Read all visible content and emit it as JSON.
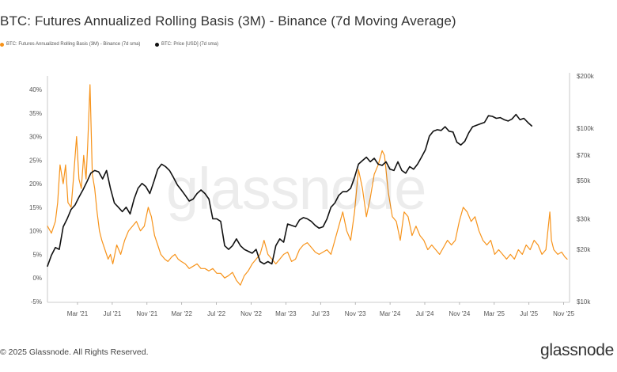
{
  "chart_data": {
    "type": "line",
    "title": "BTC: Futures Annualized Rolling Basis (3M) - Binance (7d Moving Average)",
    "watermark": "glassnode",
    "x_ticks": [
      "Mar '21",
      "Jul '21",
      "Nov '21",
      "Mar '22",
      "Jul '22",
      "Nov '22",
      "Mar '23",
      "Jul '23",
      "Nov '23",
      "Mar '24",
      "Jul '24",
      "Nov '24",
      "Mar '25",
      "Jul '25",
      "Nov '25"
    ],
    "x_range": [
      "Jan '21",
      "Nov '25"
    ],
    "left_axis": {
      "ticks": [
        "-5%",
        "0%",
        "5%",
        "10%",
        "15%",
        "20%",
        "25%",
        "30%",
        "35%",
        "40%"
      ],
      "min": -5,
      "max": 45
    },
    "right_axis": {
      "ticks": [
        "$10k",
        "$20k",
        "$30k",
        "$50k",
        "$70k",
        "$100k",
        "$200k"
      ],
      "min": 10000,
      "max": 200000,
      "scale": "log"
    },
    "series": [
      {
        "name": "BTC: Futures Annualized Rolling Basis (3M) - Binance (7d sma)",
        "color": "#f7931a",
        "axis": "left",
        "points": [
          [
            0,
            11
          ],
          [
            0.5,
            9.5
          ],
          [
            1.0,
            12
          ],
          [
            1.3,
            16
          ],
          [
            1.6,
            24
          ],
          [
            2.0,
            20
          ],
          [
            2.3,
            24
          ],
          [
            2.6,
            16
          ],
          [
            3.0,
            15
          ],
          [
            3.3,
            21
          ],
          [
            3.7,
            30
          ],
          [
            4.0,
            21
          ],
          [
            4.3,
            19
          ],
          [
            4.6,
            26
          ],
          [
            4.9,
            21
          ],
          [
            5.1,
            28
          ],
          [
            5.4,
            41
          ],
          [
            5.7,
            22
          ],
          [
            6.0,
            19
          ],
          [
            6.3,
            14
          ],
          [
            6.6,
            10
          ],
          [
            6.9,
            8
          ],
          [
            7.3,
            6
          ],
          [
            7.7,
            4
          ],
          [
            8.0,
            5
          ],
          [
            8.3,
            3
          ],
          [
            8.8,
            7
          ],
          [
            9.3,
            5
          ],
          [
            9.8,
            8
          ],
          [
            10.3,
            10
          ],
          [
            10.8,
            11
          ],
          [
            11.3,
            12
          ],
          [
            11.8,
            10
          ],
          [
            12.3,
            11
          ],
          [
            12.8,
            15
          ],
          [
            13.2,
            13
          ],
          [
            13.6,
            9
          ],
          [
            14.0,
            7
          ],
          [
            14.4,
            5
          ],
          [
            14.9,
            4
          ],
          [
            15.3,
            3.5
          ],
          [
            15.8,
            4.5
          ],
          [
            16.2,
            5
          ],
          [
            16.6,
            4
          ],
          [
            17.0,
            3.5
          ],
          [
            17.5,
            3
          ],
          [
            18.0,
            2
          ],
          [
            18.5,
            2.5
          ],
          [
            19.0,
            3
          ],
          [
            19.5,
            2
          ],
          [
            20.0,
            2
          ],
          [
            20.5,
            1.5
          ],
          [
            21.0,
            2
          ],
          [
            21.5,
            1
          ],
          [
            22.0,
            1
          ],
          [
            22.5,
            0
          ],
          [
            23.0,
            0.5
          ],
          [
            23.5,
            1.2
          ],
          [
            24.0,
            -0.5
          ],
          [
            24.5,
            -1.5
          ],
          [
            25.0,
            0.5
          ],
          [
            25.5,
            1.5
          ],
          [
            26.0,
            3
          ],
          [
            26.5,
            4
          ],
          [
            27.0,
            5
          ],
          [
            27.5,
            8
          ],
          [
            28.0,
            5
          ],
          [
            28.5,
            4
          ],
          [
            29.0,
            3
          ],
          [
            29.5,
            4
          ],
          [
            30.0,
            5
          ],
          [
            30.5,
            5.5
          ],
          [
            31.0,
            3.5
          ],
          [
            31.5,
            4
          ],
          [
            32.0,
            6
          ],
          [
            32.5,
            7
          ],
          [
            33.0,
            7.5
          ],
          [
            33.5,
            6.5
          ],
          [
            34.0,
            5.5
          ],
          [
            34.5,
            5
          ],
          [
            35.0,
            5.5
          ],
          [
            35.5,
            6
          ],
          [
            36.0,
            5
          ],
          [
            36.5,
            8
          ],
          [
            37.0,
            11
          ],
          [
            37.5,
            14
          ],
          [
            38.0,
            10
          ],
          [
            38.5,
            8
          ],
          [
            39.0,
            14
          ],
          [
            39.5,
            23
          ],
          [
            40.0,
            19
          ],
          [
            40.5,
            13
          ],
          [
            41.0,
            17
          ],
          [
            41.5,
            22
          ],
          [
            42.0,
            24
          ],
          [
            42.5,
            27
          ],
          [
            42.8,
            26
          ],
          [
            43.3,
            18
          ],
          [
            43.8,
            13
          ],
          [
            44.3,
            12
          ],
          [
            44.8,
            8
          ],
          [
            45.3,
            14
          ],
          [
            45.8,
            13
          ],
          [
            46.3,
            9
          ],
          [
            46.8,
            11
          ],
          [
            47.3,
            9
          ],
          [
            47.8,
            8
          ],
          [
            48.3,
            6
          ],
          [
            48.8,
            7
          ],
          [
            49.3,
            6
          ],
          [
            49.8,
            5
          ],
          [
            50.3,
            6.5
          ],
          [
            50.8,
            8
          ],
          [
            51.3,
            7
          ],
          [
            51.8,
            8
          ],
          [
            52.3,
            12
          ],
          [
            52.8,
            15
          ],
          [
            53.3,
            14
          ],
          [
            53.8,
            12
          ],
          [
            54.3,
            13
          ],
          [
            54.8,
            10
          ],
          [
            55.3,
            8
          ],
          [
            55.8,
            7
          ],
          [
            56.3,
            8
          ],
          [
            56.8,
            5
          ],
          [
            57.3,
            6
          ],
          [
            57.8,
            5
          ],
          [
            58.3,
            4
          ],
          [
            58.8,
            5
          ],
          [
            59.3,
            4
          ],
          [
            59.8,
            6
          ],
          [
            60.3,
            5
          ],
          [
            60.8,
            7
          ],
          [
            61.3,
            6
          ],
          [
            61.8,
            8
          ],
          [
            62.3,
            7
          ],
          [
            62.8,
            5
          ],
          [
            63.3,
            6
          ],
          [
            63.8,
            14
          ],
          [
            64.0,
            8
          ],
          [
            64.3,
            6
          ],
          [
            64.8,
            5
          ],
          [
            65.3,
            5.5
          ],
          [
            65.7,
            4.5
          ],
          [
            66.0,
            4
          ]
        ]
      },
      {
        "name": "BTC: Price [USD] (7d sma)",
        "color": "#111111",
        "axis": "right",
        "points": [
          [
            0,
            16000
          ],
          [
            0.5,
            18500
          ],
          [
            1.0,
            20500
          ],
          [
            1.5,
            20000
          ],
          [
            2.0,
            27000
          ],
          [
            2.5,
            30000
          ],
          [
            3.0,
            34000
          ],
          [
            3.5,
            36000
          ],
          [
            4.0,
            40000
          ],
          [
            4.5,
            44000
          ],
          [
            5.0,
            49000
          ],
          [
            5.5,
            55000
          ],
          [
            6.0,
            57000
          ],
          [
            6.5,
            56000
          ],
          [
            7.0,
            51000
          ],
          [
            7.5,
            57000
          ],
          [
            8.0,
            45000
          ],
          [
            8.5,
            37000
          ],
          [
            9.0,
            35000
          ],
          [
            9.5,
            33000
          ],
          [
            10.0,
            35000
          ],
          [
            10.5,
            32000
          ],
          [
            11.0,
            39000
          ],
          [
            11.5,
            45000
          ],
          [
            12.0,
            48000
          ],
          [
            12.5,
            46000
          ],
          [
            13.0,
            42000
          ],
          [
            13.5,
            49000
          ],
          [
            14.0,
            58000
          ],
          [
            14.5,
            62000
          ],
          [
            15.0,
            60000
          ],
          [
            15.5,
            57000
          ],
          [
            16.0,
            52000
          ],
          [
            16.5,
            47000
          ],
          [
            17.0,
            44000
          ],
          [
            17.5,
            41000
          ],
          [
            18.0,
            38000
          ],
          [
            18.5,
            39000
          ],
          [
            19.0,
            42000
          ],
          [
            19.5,
            44000
          ],
          [
            20.0,
            42000
          ],
          [
            20.5,
            39000
          ],
          [
            21.0,
            30000
          ],
          [
            21.5,
            30000
          ],
          [
            22.0,
            29000
          ],
          [
            22.5,
            21000
          ],
          [
            23.0,
            20000
          ],
          [
            23.5,
            21000
          ],
          [
            24.0,
            23000
          ],
          [
            24.5,
            21000
          ],
          [
            25.0,
            20000
          ],
          [
            25.5,
            19500
          ],
          [
            26.0,
            19000
          ],
          [
            26.5,
            20000
          ],
          [
            27.0,
            17000
          ],
          [
            27.5,
            16500
          ],
          [
            28.0,
            17000
          ],
          [
            28.5,
            16500
          ],
          [
            29.0,
            21000
          ],
          [
            29.5,
            23000
          ],
          [
            30.0,
            22000
          ],
          [
            30.5,
            28000
          ],
          [
            31.0,
            27500
          ],
          [
            31.5,
            27000
          ],
          [
            32.0,
            29500
          ],
          [
            32.5,
            30500
          ],
          [
            33.0,
            30000
          ],
          [
            33.5,
            29000
          ],
          [
            34.0,
            27500
          ],
          [
            34.5,
            26500
          ],
          [
            35.0,
            27000
          ],
          [
            35.5,
            30000
          ],
          [
            36.0,
            35000
          ],
          [
            36.5,
            37000
          ],
          [
            37.0,
            41000
          ],
          [
            37.5,
            43000
          ],
          [
            38.0,
            43000
          ],
          [
            38.5,
            45000
          ],
          [
            39.0,
            52000
          ],
          [
            39.5,
            62000
          ],
          [
            40.0,
            65000
          ],
          [
            40.5,
            68000
          ],
          [
            41.0,
            64000
          ],
          [
            41.5,
            67000
          ],
          [
            42.0,
            62000
          ],
          [
            42.5,
            61000
          ],
          [
            43.0,
            64000
          ],
          [
            43.5,
            58000
          ],
          [
            44.0,
            57000
          ],
          [
            44.5,
            64000
          ],
          [
            45.0,
            57000
          ],
          [
            45.5,
            55000
          ],
          [
            46.0,
            60000
          ],
          [
            46.5,
            58000
          ],
          [
            47.0,
            62000
          ],
          [
            47.5,
            68000
          ],
          [
            48.0,
            75000
          ],
          [
            48.5,
            90000
          ],
          [
            49.0,
            96000
          ],
          [
            49.5,
            98000
          ],
          [
            50.0,
            97000
          ],
          [
            50.5,
            102000
          ],
          [
            51.0,
            96000
          ],
          [
            51.5,
            95000
          ],
          [
            52.0,
            83000
          ],
          [
            52.5,
            80000
          ],
          [
            53.0,
            84000
          ],
          [
            53.5,
            94000
          ],
          [
            54.0,
            102000
          ],
          [
            54.5,
            104000
          ],
          [
            55.0,
            106000
          ],
          [
            55.5,
            108000
          ],
          [
            56.0,
            118000
          ],
          [
            56.5,
            117000
          ],
          [
            57.0,
            114000
          ],
          [
            57.5,
            115000
          ],
          [
            58.0,
            112000
          ],
          [
            58.5,
            110000
          ],
          [
            59.0,
            113000
          ],
          [
            59.5,
            120000
          ],
          [
            60.0,
            112000
          ],
          [
            60.5,
            114000
          ],
          [
            61.0,
            108000
          ],
          [
            61.5,
            103000
          ]
        ]
      }
    ]
  },
  "legend": [
    {
      "label": "BTC: Futures Annualized Rolling Basis (3M) - Binance (7d sma)",
      "color": "#f7931a"
    },
    {
      "label": "BTC: Price [USD] (7d sma)",
      "color": "#111111"
    }
  ],
  "footer": {
    "copyright": "© 2025 Glassnode. All Rights Reserved.",
    "brand": "glassnode"
  }
}
